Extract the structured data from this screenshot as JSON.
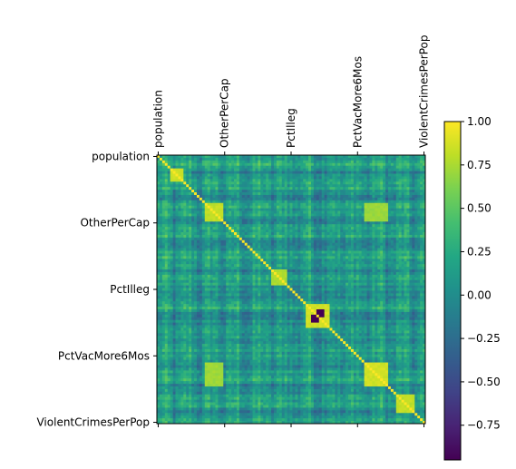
{
  "chart_data": {
    "type": "heatmap",
    "title": "",
    "xlabel": "",
    "ylabel": "",
    "x_ticks": [
      " population",
      "OtherPerCap",
      "PctIlleg",
      "PctVacMore6Mos",
      "ViolentCrimesPerPop"
    ],
    "y_ticks": [
      " population",
      "OtherPerCap",
      "PctIlleg",
      "PctVacMore6Mos",
      "ViolentCrimesPerPop"
    ],
    "tick_positions": [
      0,
      25,
      50,
      75,
      100
    ],
    "n_variables": 101,
    "colormap": "viridis",
    "value_range": [
      -0.95,
      1.0
    ],
    "colorbar": {
      "ticks": [
        1.0,
        0.75,
        0.5,
        0.25,
        0.0,
        -0.25,
        -0.5,
        -0.75
      ],
      "tick_labels": [
        "1.00",
        "0.75",
        "0.50",
        "0.25",
        "0.00",
        "−0.25",
        "−0.50",
        "−0.75"
      ],
      "placement": "right"
    },
    "diagonal_value": 1.0,
    "notable_blocks": [
      {
        "rows": [
          5,
          9
        ],
        "cols": [
          5,
          9
        ],
        "approx_value": 0.9
      },
      {
        "rows": [
          18,
          24
        ],
        "cols": [
          18,
          24
        ],
        "approx_value": 0.85
      },
      {
        "rows": [
          43,
          48
        ],
        "cols": [
          43,
          48
        ],
        "approx_value": 0.8
      },
      {
        "rows": [
          56,
          64
        ],
        "cols": [
          56,
          64
        ],
        "approx_value": 0.9
      },
      {
        "rows": [
          78,
          86
        ],
        "cols": [
          78,
          86
        ],
        "approx_value": 0.9
      },
      {
        "rows": [
          90,
          96
        ],
        "cols": [
          90,
          96
        ],
        "approx_value": 0.85
      },
      {
        "rows": [
          18,
          24
        ],
        "cols": [
          78,
          86
        ],
        "approx_value": 0.75
      },
      {
        "rows": [
          78,
          86
        ],
        "cols": [
          18,
          24
        ],
        "approx_value": 0.75
      },
      {
        "rows": [
          58,
          60
        ],
        "cols": [
          60,
          62
        ],
        "approx_value": -0.95
      },
      {
        "rows": [
          60,
          62
        ],
        "cols": [
          58,
          60
        ],
        "approx_value": -0.95
      }
    ]
  }
}
